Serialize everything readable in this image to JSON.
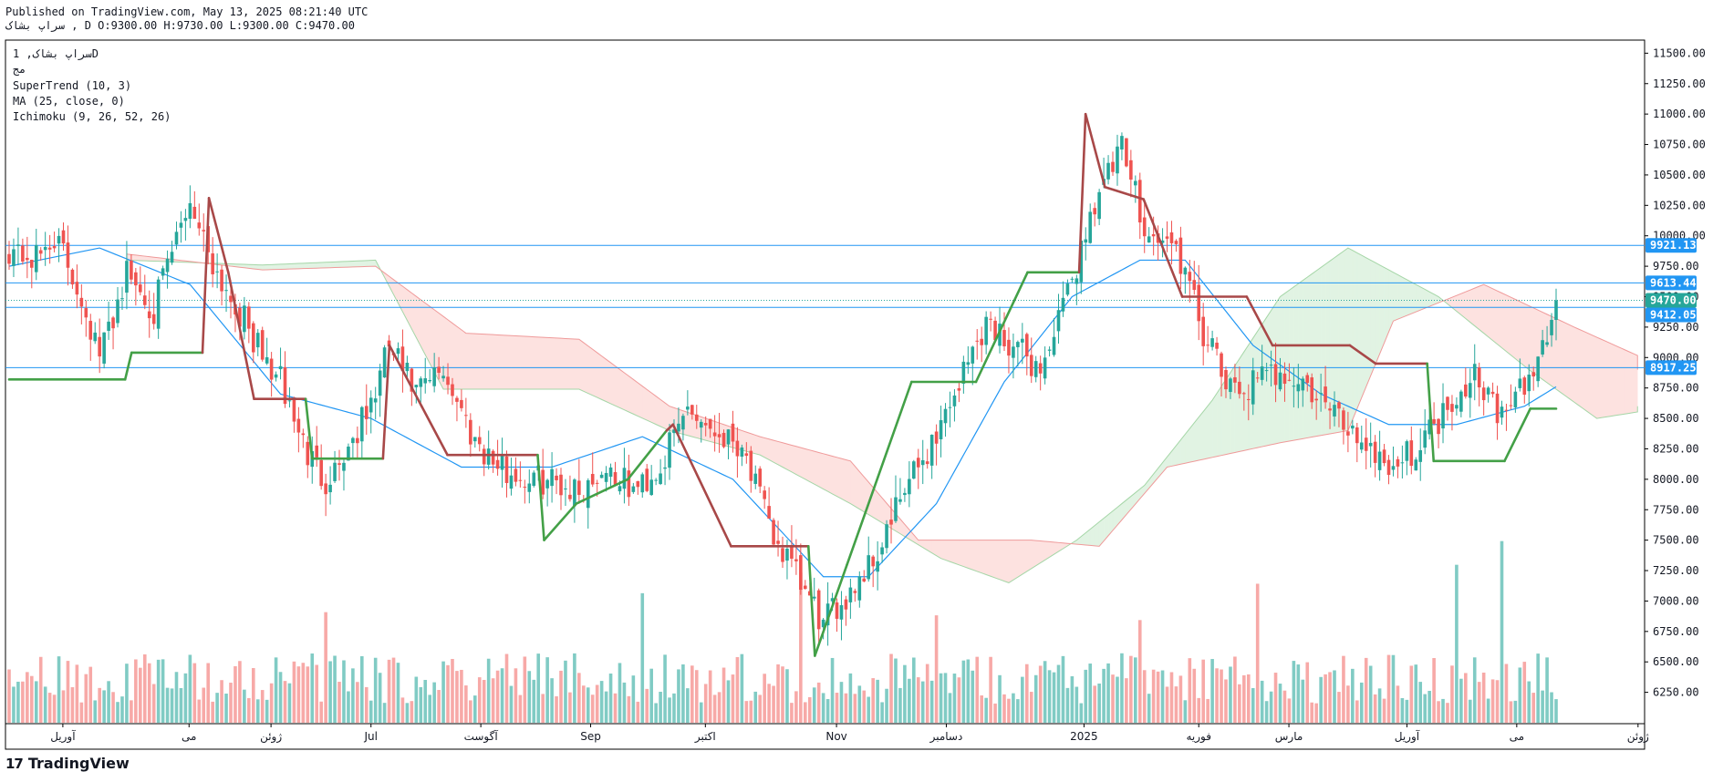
{
  "header": {
    "published": "Published on TradingView.com, May 13, 2025 08:21:40 UTC",
    "ohlc_line": "سراپ بشاک , D O:9300.00 H:9730.00 L:9300.00 C:9470.00"
  },
  "legend": {
    "line1": "سراپ بشاک, 1D",
    "line2": "مج",
    "supertrend": "SuperTrend (10, 3)",
    "ma": "MA (25, close, 0)",
    "ichimoku": "Ichimoku (9, 26, 52, 26)"
  },
  "footer": {
    "brand": "TradingView",
    "mark": "17"
  },
  "colors": {
    "up": "#26a69a",
    "down": "#ef5350",
    "vol_up": "#80cbc4",
    "vol_down": "#f7a9a7",
    "supertrend_up": "#43a047",
    "supertrend_down": "#a84848",
    "ma": "#2196f3",
    "hline": "#2196f3",
    "cloud_bull": "#e1f3e3",
    "cloud_bear": "#fde2e0",
    "span_a": "#a5d6a7",
    "span_b": "#ef9a9a",
    "last_price": "#26a69a"
  },
  "chart_data": {
    "type": "candlestick",
    "y_axis": {
      "range": [
        6000,
        11600
      ],
      "ticks": [
        "11500.00",
        "11250.00",
        "11000.00",
        "10750.00",
        "10500.00",
        "10250.00",
        "10000.00",
        "9750.00",
        "9500.00",
        "9250.00",
        "9000.00",
        "8750.00",
        "8500.00",
        "8250.00",
        "8000.00",
        "7750.00",
        "7500.00",
        "7250.00",
        "7000.00",
        "6750.00",
        "6500.00",
        "6250.00"
      ]
    },
    "x_axis": {
      "labels": [
        {
          "label": "آوریل",
          "frac": 0.035
        },
        {
          "label": "می",
          "frac": 0.112
        },
        {
          "label": "ژوئن",
          "frac": 0.162
        },
        {
          "label": "Jul",
          "frac": 0.223
        },
        {
          "label": "آگوست",
          "frac": 0.29
        },
        {
          "label": "Sep",
          "frac": 0.357
        },
        {
          "label": "اکتبر",
          "frac": 0.427
        },
        {
          "label": "Nov",
          "frac": 0.507
        },
        {
          "label": "دسامبر",
          "frac": 0.574
        },
        {
          "label": "2025",
          "frac": 0.658
        },
        {
          "label": "فوریه",
          "frac": 0.728
        },
        {
          "label": "مارس",
          "frac": 0.783
        },
        {
          "label": "آوریل",
          "frac": 0.855
        },
        {
          "label": "می",
          "frac": 0.922
        },
        {
          "label": "ژوئن",
          "frac": 0.996
        }
      ]
    },
    "price_labels": [
      {
        "value": 9921.13,
        "label": "9921.13",
        "kind": "line"
      },
      {
        "value": 9613.44,
        "label": "9613.44",
        "kind": "line"
      },
      {
        "value": 9470.0,
        "label": "9470.00",
        "kind": "last"
      },
      {
        "value": 9412.05,
        "label": "9412.05",
        "kind": "line"
      },
      {
        "value": 8917.25,
        "label": "8917.25",
        "kind": "line"
      }
    ],
    "horizontal_lines": [
      9921.13,
      9613.44,
      9412.05,
      8917.25
    ],
    "last_price": 9470.0,
    "anchors": {
      "close": [
        [
          0,
          9900
        ],
        [
          6,
          9800
        ],
        [
          10,
          10000
        ],
        [
          16,
          9500
        ],
        [
          20,
          9000
        ],
        [
          26,
          9700
        ],
        [
          32,
          9400
        ],
        [
          40,
          10300
        ],
        [
          46,
          9700
        ],
        [
          52,
          9300
        ],
        [
          56,
          9000
        ],
        [
          60,
          8800
        ],
        [
          66,
          8200
        ],
        [
          70,
          8000
        ],
        [
          74,
          8200
        ],
        [
          80,
          8600
        ],
        [
          84,
          9100
        ],
        [
          90,
          8700
        ],
        [
          96,
          8900
        ],
        [
          102,
          8400
        ],
        [
          108,
          8100
        ],
        [
          114,
          8000
        ],
        [
          120,
          8000
        ],
        [
          126,
          7900
        ],
        [
          132,
          8100
        ],
        [
          138,
          7900
        ],
        [
          144,
          8100
        ],
        [
          150,
          8600
        ],
        [
          156,
          8400
        ],
        [
          162,
          8300
        ],
        [
          168,
          7600
        ],
        [
          174,
          7200
        ],
        [
          180,
          6800
        ],
        [
          186,
          7100
        ],
        [
          192,
          7400
        ],
        [
          198,
          7900
        ],
        [
          204,
          8300
        ],
        [
          210,
          8800
        ],
        [
          216,
          9300
        ],
        [
          222,
          9100
        ],
        [
          228,
          8900
        ],
        [
          234,
          9500
        ],
        [
          240,
          10300
        ],
        [
          246,
          10700
        ],
        [
          252,
          10000
        ],
        [
          258,
          9900
        ],
        [
          264,
          9200
        ],
        [
          270,
          8700
        ],
        [
          276,
          8800
        ],
        [
          282,
          8900
        ],
        [
          288,
          8700
        ],
        [
          294,
          8500
        ],
        [
          300,
          8300
        ],
        [
          306,
          8100
        ],
        [
          312,
          8300
        ],
        [
          318,
          8600
        ],
        [
          324,
          8900
        ],
        [
          330,
          8500
        ],
        [
          336,
          8800
        ],
        [
          340,
          9200
        ],
        [
          342,
          9470
        ]
      ],
      "supertrend": [
        [
          0,
          8820,
          "u"
        ],
        [
          18,
          8820,
          "u"
        ],
        [
          19,
          9040,
          "u"
        ],
        [
          30,
          9040,
          "u"
        ],
        [
          31,
          10310,
          "d"
        ],
        [
          34,
          9700,
          "d"
        ],
        [
          38,
          8660,
          "d"
        ],
        [
          46,
          8660,
          "d"
        ],
        [
          47,
          8170,
          "u"
        ],
        [
          58,
          8170,
          "u"
        ],
        [
          59,
          9100,
          "d"
        ],
        [
          64,
          8600,
          "d"
        ],
        [
          68,
          8200,
          "d"
        ],
        [
          82,
          8200,
          "d"
        ],
        [
          83,
          7500,
          "u"
        ],
        [
          88,
          7800,
          "u"
        ],
        [
          96,
          8000,
          "u"
        ],
        [
          102,
          8400,
          "u"
        ],
        [
          103,
          8450,
          "d"
        ],
        [
          112,
          7450,
          "d"
        ],
        [
          124,
          7450,
          "d"
        ],
        [
          125,
          6550,
          "u"
        ],
        [
          130,
          7300,
          "u"
        ],
        [
          140,
          8800,
          "u"
        ],
        [
          150,
          8800,
          "u"
        ],
        [
          158,
          9700,
          "u"
        ],
        [
          166,
          9700,
          "u"
        ],
        [
          167,
          11000,
          "d"
        ],
        [
          170,
          10400,
          "d"
        ],
        [
          176,
          10300,
          "d"
        ],
        [
          182,
          9500,
          "d"
        ],
        [
          192,
          9500,
          "d"
        ],
        [
          196,
          9100,
          "d"
        ],
        [
          208,
          9100,
          "d"
        ],
        [
          212,
          8950,
          "d"
        ],
        [
          220,
          8950,
          "d"
        ],
        [
          221,
          8150,
          "u"
        ],
        [
          232,
          8150,
          "u"
        ],
        [
          236,
          8580,
          "u"
        ],
        [
          240,
          8580,
          "u"
        ]
      ],
      "ma": [
        [
          0,
          9750
        ],
        [
          20,
          9900
        ],
        [
          40,
          9600
        ],
        [
          60,
          8700
        ],
        [
          80,
          8500
        ],
        [
          100,
          8100
        ],
        [
          120,
          8100
        ],
        [
          140,
          8350
        ],
        [
          160,
          8000
        ],
        [
          180,
          7200
        ],
        [
          190,
          7200
        ],
        [
          205,
          7800
        ],
        [
          220,
          8800
        ],
        [
          235,
          9500
        ],
        [
          250,
          9800
        ],
        [
          260,
          9800
        ],
        [
          275,
          9100
        ],
        [
          290,
          8700
        ],
        [
          305,
          8450
        ],
        [
          320,
          8450
        ],
        [
          335,
          8600
        ],
        [
          342,
          8760
        ]
      ],
      "span_a": [
        [
          0,
          9800
        ],
        [
          30,
          9760
        ],
        [
          55,
          9800
        ],
        [
          70,
          8740
        ],
        [
          100,
          8740
        ],
        [
          120,
          8400
        ],
        [
          140,
          8200
        ],
        [
          160,
          7800
        ],
        [
          180,
          7350
        ],
        [
          195,
          7150
        ],
        [
          210,
          7500
        ],
        [
          225,
          7950
        ],
        [
          240,
          8650
        ],
        [
          255,
          9500
        ],
        [
          270,
          9900
        ],
        [
          290,
          9500
        ],
        [
          310,
          8900
        ],
        [
          325,
          8500
        ],
        [
          342,
          8600
        ]
      ],
      "span_b": [
        [
          0,
          9850
        ],
        [
          30,
          9720
        ],
        [
          55,
          9750
        ],
        [
          75,
          9200
        ],
        [
          100,
          9150
        ],
        [
          120,
          8600
        ],
        [
          140,
          8350
        ],
        [
          160,
          8150
        ],
        [
          175,
          7500
        ],
        [
          200,
          7500
        ],
        [
          215,
          7450
        ],
        [
          230,
          8100
        ],
        [
          255,
          8300
        ],
        [
          270,
          8400
        ],
        [
          280,
          9300
        ],
        [
          300,
          9600
        ],
        [
          320,
          9250
        ],
        [
          335,
          9000
        ],
        [
          342,
          8900
        ]
      ]
    },
    "volume": {
      "max_value": 1200000,
      "spikes": [
        [
          70,
          700000
        ],
        [
          140,
          820000
        ],
        [
          175,
          950000
        ],
        [
          205,
          680000
        ],
        [
          250,
          650000
        ],
        [
          276,
          880000
        ],
        [
          320,
          1000000
        ],
        [
          330,
          1150000
        ]
      ]
    }
  }
}
